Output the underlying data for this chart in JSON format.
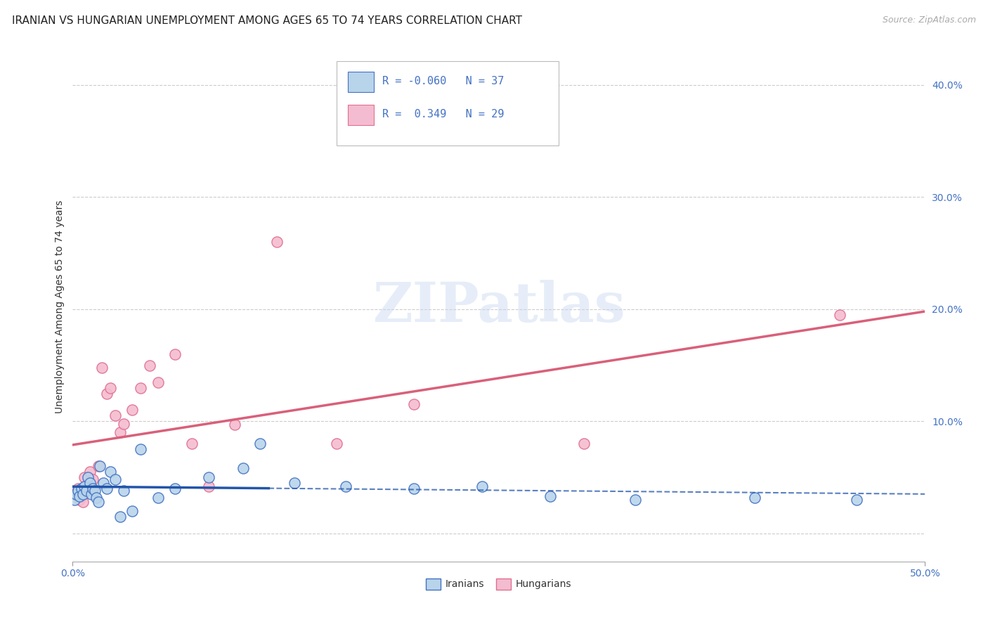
{
  "title": "IRANIAN VS HUNGARIAN UNEMPLOYMENT AMONG AGES 65 TO 74 YEARS CORRELATION CHART",
  "source": "Source: ZipAtlas.com",
  "ylabel": "Unemployment Among Ages 65 to 74 years",
  "xlim": [
    0.0,
    0.5
  ],
  "ylim": [
    -0.025,
    0.43
  ],
  "yticks": [
    0.0,
    0.1,
    0.2,
    0.3,
    0.4
  ],
  "watermark_text": "ZIPatlas",
  "legend_iranian_r": "-0.060",
  "legend_iranian_n": "37",
  "legend_hungarian_r": "0.349",
  "legend_hungarian_n": "29",
  "iranian_face_color": "#b8d4ea",
  "iranian_edge_color": "#4472c4",
  "hungarian_face_color": "#f4bcd0",
  "hungarian_edge_color": "#e07090",
  "iranian_line_color": "#2255aa",
  "hungarian_line_color": "#d9607a",
  "background_color": "#ffffff",
  "iranians_x": [
    0.001,
    0.002,
    0.003,
    0.004,
    0.005,
    0.006,
    0.007,
    0.008,
    0.009,
    0.01,
    0.011,
    0.012,
    0.013,
    0.014,
    0.015,
    0.016,
    0.018,
    0.02,
    0.022,
    0.025,
    0.028,
    0.03,
    0.035,
    0.04,
    0.05,
    0.06,
    0.08,
    0.1,
    0.11,
    0.13,
    0.16,
    0.2,
    0.24,
    0.28,
    0.33,
    0.4,
    0.46
  ],
  "iranians_y": [
    0.03,
    0.035,
    0.038,
    0.033,
    0.04,
    0.035,
    0.042,
    0.038,
    0.05,
    0.045,
    0.035,
    0.04,
    0.038,
    0.032,
    0.028,
    0.06,
    0.045,
    0.04,
    0.055,
    0.048,
    0.015,
    0.038,
    0.02,
    0.075,
    0.032,
    0.04,
    0.05,
    0.058,
    0.08,
    0.045,
    0.042,
    0.04,
    0.042,
    0.033,
    0.03,
    0.032,
    0.03
  ],
  "hungarians_x": [
    0.002,
    0.003,
    0.004,
    0.005,
    0.006,
    0.007,
    0.008,
    0.01,
    0.012,
    0.015,
    0.017,
    0.02,
    0.022,
    0.025,
    0.028,
    0.03,
    0.035,
    0.04,
    0.045,
    0.05,
    0.06,
    0.07,
    0.08,
    0.095,
    0.12,
    0.155,
    0.2,
    0.3,
    0.45
  ],
  "hungarians_y": [
    0.035,
    0.04,
    0.03,
    0.033,
    0.028,
    0.05,
    0.038,
    0.055,
    0.048,
    0.06,
    0.148,
    0.125,
    0.13,
    0.105,
    0.09,
    0.098,
    0.11,
    0.13,
    0.15,
    0.135,
    0.16,
    0.08,
    0.042,
    0.097,
    0.26,
    0.08,
    0.115,
    0.08,
    0.195
  ],
  "title_fontsize": 11,
  "axis_label_fontsize": 10,
  "tick_fontsize": 10,
  "marker_size": 120
}
